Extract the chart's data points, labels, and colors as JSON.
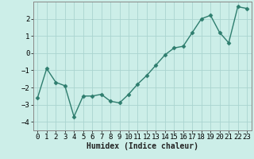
{
  "x": [
    0,
    1,
    2,
    3,
    4,
    5,
    6,
    7,
    8,
    9,
    10,
    11,
    12,
    13,
    14,
    15,
    16,
    17,
    18,
    19,
    20,
    21,
    22,
    23
  ],
  "y": [
    -2.6,
    -0.9,
    -1.7,
    -1.9,
    -3.7,
    -2.5,
    -2.5,
    -2.4,
    -2.8,
    -2.9,
    -2.4,
    -1.8,
    -1.3,
    -0.7,
    -0.1,
    0.3,
    0.4,
    1.2,
    2.0,
    2.2,
    1.2,
    0.6,
    2.7,
    2.6
  ],
  "line_color": "#2e7d6e",
  "marker": "D",
  "marker_size": 2.5,
  "line_width": 1.0,
  "bg_color": "#cceee8",
  "grid_color": "#aad4d0",
  "xlabel": "Humidex (Indice chaleur)",
  "xlabel_fontsize": 7,
  "tick_fontsize": 6.5,
  "ylim": [
    -4.5,
    3.0
  ],
  "xlim": [
    -0.5,
    23.5
  ],
  "yticks": [
    -4,
    -3,
    -2,
    -1,
    0,
    1,
    2
  ],
  "xtick_labels": [
    "0",
    "1",
    "2",
    "3",
    "4",
    "5",
    "6",
    "7",
    "8",
    "9",
    "10",
    "11",
    "12",
    "13",
    "14",
    "15",
    "16",
    "17",
    "18",
    "19",
    "20",
    "21",
    "22",
    "23"
  ]
}
